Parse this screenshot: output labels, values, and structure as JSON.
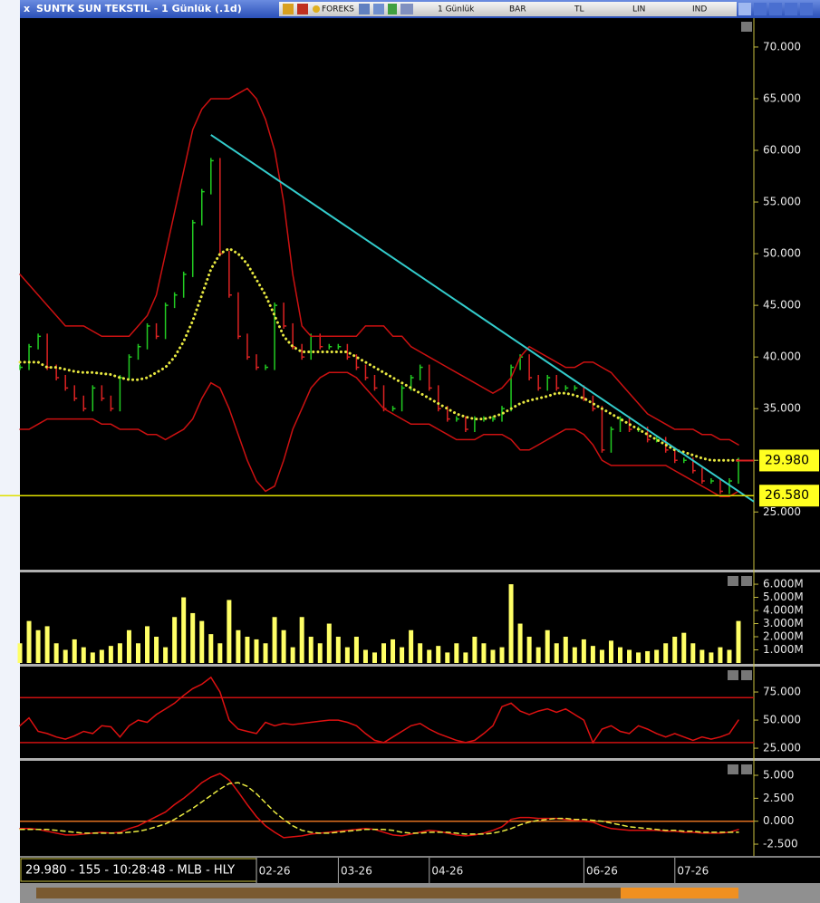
{
  "window": {
    "title": "SUNTK SUN TEKSTIL - 1 Günlük (.1d)",
    "toolbar": [
      "FOREKS",
      "1 Günlük",
      "BAR",
      "TL",
      "LIN",
      "IND"
    ]
  },
  "status": "29.980 - 155 - 10:28:48 - MLB - HLY",
  "chart_data": [
    {
      "type": "line",
      "categories": [
        null,
        null,
        null,
        null,
        null,
        null,
        null,
        null,
        null,
        null,
        null,
        null,
        null,
        null,
        null,
        null,
        null,
        null,
        null,
        null,
        null,
        null,
        null,
        null,
        null,
        null,
        null,
        null,
        "02-26",
        null,
        null,
        null,
        null,
        null,
        null,
        null,
        null,
        "03-26",
        null,
        null,
        null,
        null,
        null,
        null,
        null,
        null,
        null,
        "04-26",
        null,
        null,
        null,
        null,
        null,
        null,
        null,
        null,
        null,
        null,
        null,
        null,
        null,
        null,
        null,
        null,
        "06-26",
        null,
        null,
        null,
        null,
        null,
        null,
        null,
        null,
        null,
        "07-26",
        null,
        null,
        null,
        null,
        null
      ],
      "series": [
        {
          "style": "bars",
          "color": "#22cc22",
          "down_color": "#dd2222",
          "values": [
            39,
            41,
            42,
            39,
            38,
            37,
            36,
            35,
            37,
            36,
            35,
            38,
            40,
            41,
            43,
            42,
            45,
            46,
            48,
            53,
            56,
            59,
            50,
            46,
            42,
            40,
            39,
            39,
            45,
            43,
            41,
            40,
            42,
            41,
            41,
            41,
            40,
            39,
            38,
            37,
            35,
            35,
            37,
            38,
            39,
            37,
            35,
            34,
            34,
            33,
            34,
            34,
            34,
            35,
            39,
            40,
            38,
            37,
            38,
            37,
            37,
            37,
            36,
            35,
            31,
            33,
            34,
            33,
            33,
            32,
            32,
            31,
            30,
            30,
            29,
            28,
            28,
            27,
            28,
            29.98
          ]
        },
        {
          "style": "solid",
          "color": "#cc1111",
          "values": [
            48,
            47,
            46,
            45,
            44,
            43,
            43,
            43,
            42.5,
            42,
            42,
            42,
            42,
            43,
            44,
            46,
            50,
            54,
            58,
            62,
            64,
            65,
            65,
            65,
            65.5,
            66,
            65,
            63,
            60,
            55,
            48,
            43,
            42,
            42,
            42,
            42,
            42,
            42,
            43,
            43,
            43,
            42,
            42,
            41,
            40.5,
            40,
            39.5,
            39,
            38.5,
            38,
            37.5,
            37,
            36.5,
            37,
            38,
            40,
            41,
            40.5,
            40,
            39.5,
            39,
            39,
            39.5,
            39.5,
            39,
            38.5,
            37.5,
            36.5,
            35.5,
            34.5,
            34,
            33.5,
            33,
            33,
            33,
            32.5,
            32.5,
            32,
            32,
            31.5
          ]
        },
        {
          "style": "solid",
          "color": "#cc1111",
          "values": [
            33,
            33,
            33.5,
            34,
            34,
            34,
            34,
            34,
            34,
            33.5,
            33.5,
            33,
            33,
            33,
            32.5,
            32.5,
            32,
            32.5,
            33,
            34,
            36,
            37.5,
            37,
            35,
            32.5,
            30,
            28,
            27,
            27.5,
            30,
            33,
            35,
            37,
            38,
            38.5,
            38.5,
            38.5,
            38,
            37,
            36,
            35,
            34.5,
            34,
            33.5,
            33.5,
            33.5,
            33,
            32.5,
            32,
            32,
            32,
            32.5,
            32.5,
            32.5,
            32,
            31,
            31,
            31.5,
            32,
            32.5,
            33,
            33,
            32.5,
            31.5,
            30,
            29.5,
            29.5,
            29.5,
            29.5,
            29.5,
            29.5,
            29.5,
            29,
            28.5,
            28,
            27.5,
            27,
            26.5,
            26.5,
            27
          ]
        },
        {
          "style": "dotted",
          "color": "#e8e840",
          "values": [
            39.5,
            39.5,
            39.5,
            39,
            39,
            38.8,
            38.6,
            38.5,
            38.5,
            38.4,
            38.3,
            38,
            37.8,
            37.8,
            38,
            38.5,
            39,
            40,
            41.5,
            43.5,
            46,
            48.5,
            50,
            50.5,
            50,
            49,
            47.5,
            46,
            44,
            42,
            41,
            40.5,
            40.5,
            40.5,
            40.5,
            40.5,
            40.5,
            40,
            39.5,
            39,
            38.5,
            38,
            37.5,
            37,
            36.5,
            36,
            35.5,
            35,
            34.5,
            34.2,
            34,
            34,
            34.2,
            34.5,
            35,
            35.5,
            35.8,
            36,
            36.2,
            36.5,
            36.5,
            36.3,
            36,
            35.5,
            35,
            34.5,
            34,
            33.5,
            33,
            32.5,
            32,
            31.5,
            31,
            30.8,
            30.5,
            30.2,
            30,
            30,
            30,
            30
          ]
        }
      ],
      "trend_line": {
        "color": "#33cccc",
        "values": [
          61.5,
          26
        ]
      },
      "level": {
        "value": 26.58,
        "label": "26.580",
        "color": "#e0e000"
      },
      "last": {
        "value": 29.98,
        "label": "29.980"
      },
      "ylim": [
        19.5,
        72.8
      ],
      "yticks": [
        {
          "value": 25,
          "label": "25.000"
        },
        {
          "value": 30,
          "label": "30.000"
        },
        {
          "value": 35,
          "label": "35.000"
        },
        {
          "value": 40,
          "label": "40.000"
        },
        {
          "value": 45,
          "label": "45.000"
        },
        {
          "value": 50,
          "label": "50.000"
        },
        {
          "value": 55,
          "label": "55.000"
        },
        {
          "value": 60,
          "label": "60.000"
        },
        {
          "value": 65,
          "label": "65.000"
        },
        {
          "value": 70,
          "label": "70.000"
        }
      ]
    },
    {
      "type": "bar",
      "color": "#ffff66",
      "values": [
        1.5,
        3.2,
        2.5,
        2.8,
        1.5,
        1,
        1.8,
        1.2,
        0.8,
        1,
        1.3,
        1.5,
        2.5,
        1.5,
        2.8,
        2,
        1.2,
        3.5,
        5,
        3.8,
        3.2,
        2.2,
        1.5,
        4.8,
        2.5,
        2,
        1.8,
        1.5,
        3.5,
        2.5,
        1.2,
        3.5,
        2,
        1.5,
        3,
        2,
        1.2,
        2,
        1,
        0.8,
        1.5,
        1.8,
        1.2,
        2.5,
        1.5,
        1,
        1.3,
        0.8,
        1.5,
        0.8,
        2,
        1.5,
        1,
        1.2,
        6,
        3,
        2,
        1.2,
        2.5,
        1.5,
        2,
        1.2,
        1.8,
        1.3,
        1,
        1.7,
        1.2,
        1,
        0.8,
        0.9,
        1,
        1.5,
        2,
        2.3,
        1.5,
        1,
        0.8,
        1.2,
        1,
        3.2
      ],
      "ylim": [
        0,
        6.9
      ],
      "yticks": [
        {
          "value": 1,
          "label": "1.000M"
        },
        {
          "value": 2,
          "label": "2.000M"
        },
        {
          "value": 3,
          "label": "3.000M"
        },
        {
          "value": 4,
          "label": "4.000M"
        },
        {
          "value": 5,
          "label": "5.000M"
        },
        {
          "value": 6,
          "label": "6.000M"
        }
      ]
    },
    {
      "type": "line",
      "series": [
        {
          "style": "solid",
          "color": "#dd1111",
          "values": [
            45,
            52,
            40,
            38,
            35,
            33,
            36,
            40,
            38,
            45,
            44,
            35,
            45,
            50,
            48,
            55,
            60,
            65,
            72,
            78,
            82,
            88,
            75,
            50,
            42,
            40,
            38,
            48,
            45,
            47,
            46,
            47,
            48,
            49,
            50,
            50,
            48,
            45,
            38,
            32,
            30,
            35,
            40,
            45,
            47,
            42,
            38,
            35,
            32,
            30,
            32,
            38,
            45,
            62,
            65,
            58,
            55,
            58,
            60,
            57,
            60,
            55,
            50,
            30,
            42,
            45,
            40,
            38,
            45,
            42,
            38,
            35,
            38,
            35,
            32,
            35,
            33,
            35,
            38,
            50
          ]
        }
      ],
      "levels": [
        30,
        70
      ],
      "level_color": "#cc1111",
      "ylim": [
        17,
        97.6
      ],
      "yticks": [
        {
          "value": 25,
          "label": "25.000"
        },
        {
          "value": 50,
          "label": "50.000"
        },
        {
          "value": 75,
          "label": "75.000"
        }
      ]
    },
    {
      "type": "line",
      "series": [
        {
          "style": "solid",
          "color": "#dd1111",
          "values": [
            -0.8,
            -0.8,
            -0.9,
            -1.1,
            -1.3,
            -1.5,
            -1.5,
            -1.4,
            -1.3,
            -1.2,
            -1.3,
            -1.2,
            -0.8,
            -0.5,
            0,
            0.5,
            1,
            1.8,
            2.5,
            3.3,
            4.2,
            4.8,
            5.2,
            4.5,
            3.2,
            1.8,
            0.5,
            -0.5,
            -1.2,
            -1.8,
            -1.7,
            -1.6,
            -1.4,
            -1.3,
            -1.2,
            -1.1,
            -1,
            -0.9,
            -0.8,
            -0.9,
            -1.2,
            -1.5,
            -1.6,
            -1.4,
            -1.2,
            -1,
            -1.1,
            -1.3,
            -1.5,
            -1.6,
            -1.5,
            -1.3,
            -1,
            -0.6,
            0.2,
            0.4,
            0.4,
            0.3,
            0.3,
            0.3,
            0.2,
            0.1,
            0,
            -0.1,
            -0.5,
            -0.8,
            -0.9,
            -1,
            -1,
            -1,
            -1,
            -1.1,
            -1.1,
            -1.2,
            -1.2,
            -1.3,
            -1.3,
            -1.3,
            -1.2,
            -0.9
          ]
        },
        {
          "style": "dashed",
          "color": "#e8e840",
          "values": [
            -0.9,
            -0.9,
            -0.9,
            -0.9,
            -1,
            -1.1,
            -1.2,
            -1.3,
            -1.3,
            -1.3,
            -1.3,
            -1.3,
            -1.2,
            -1.1,
            -0.9,
            -0.6,
            -0.3,
            0.2,
            0.8,
            1.4,
            2.1,
            2.8,
            3.5,
            4.1,
            4.2,
            3.8,
            3,
            2,
            1,
            0.2,
            -0.5,
            -1,
            -1.2,
            -1.3,
            -1.3,
            -1.2,
            -1.1,
            -1,
            -0.9,
            -0.9,
            -0.9,
            -1,
            -1.2,
            -1.3,
            -1.3,
            -1.2,
            -1.2,
            -1.2,
            -1.3,
            -1.4,
            -1.4,
            -1.4,
            -1.3,
            -1.1,
            -0.8,
            -0.4,
            -0.1,
            0.1,
            0.2,
            0.3,
            0.3,
            0.2,
            0.2,
            0.1,
            0,
            -0.2,
            -0.4,
            -0.6,
            -0.7,
            -0.8,
            -0.9,
            -1,
            -1,
            -1.1,
            -1.1,
            -1.2,
            -1.2,
            -1.2,
            -1.2,
            -1.2
          ]
        }
      ],
      "levels": [
        0
      ],
      "level_color": "#e07020",
      "ylim": [
        -3.78,
        6.58
      ],
      "yticks": [
        {
          "value": -2.5,
          "label": "-2.500"
        },
        {
          "value": 0,
          "label": "0.000"
        },
        {
          "value": 2.5,
          "label": "2.500"
        },
        {
          "value": 5,
          "label": "5.000"
        }
      ]
    }
  ]
}
